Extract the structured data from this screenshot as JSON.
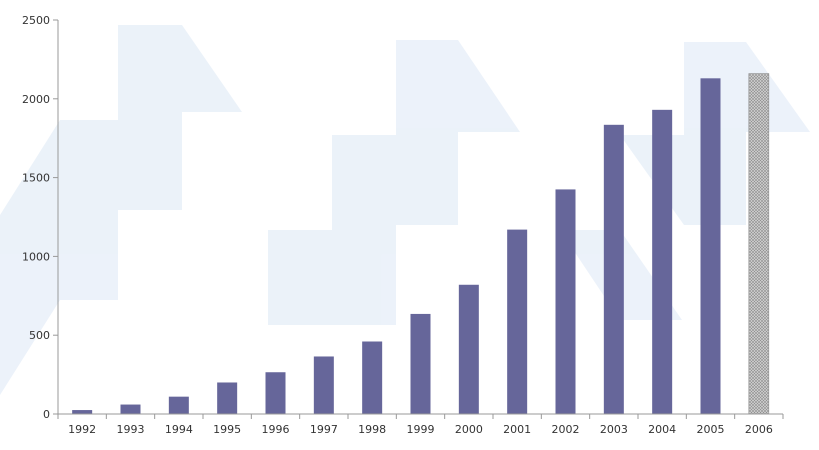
{
  "chart_data": {
    "type": "bar",
    "title": "",
    "xlabel": "",
    "ylabel": "",
    "categories": [
      "1992",
      "1993",
      "1994",
      "1995",
      "1996",
      "1997",
      "1998",
      "1999",
      "2000",
      "2001",
      "2002",
      "2003",
      "2004",
      "2005",
      "2006"
    ],
    "values": [
      25,
      60,
      110,
      200,
      265,
      365,
      460,
      635,
      820,
      1170,
      1425,
      1835,
      1930,
      2130,
      2160
    ],
    "ylim": [
      0,
      2500
    ],
    "yticks": [
      "0",
      "500",
      "1000",
      "1500",
      "2000",
      "2500"
    ],
    "grid": false,
    "legend": "none",
    "colors": {
      "bar": "#66669a",
      "highlight_fill": "#c8c8c8",
      "highlight_stroke": "#8a8a8a",
      "axis": "#999999",
      "decor": "#dce8f5"
    },
    "highlight_index": 14
  }
}
